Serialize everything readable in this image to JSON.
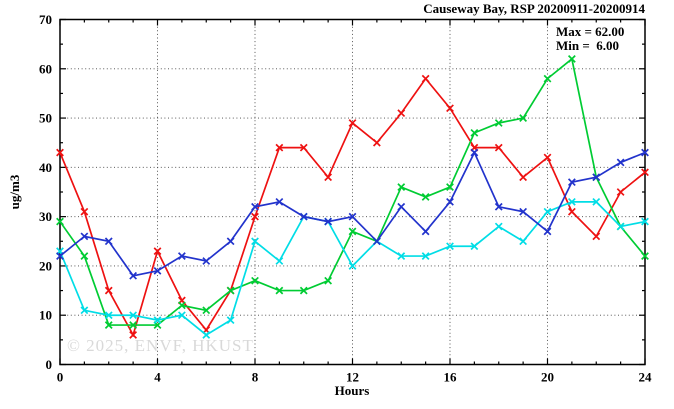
{
  "chart_data": {
    "type": "line",
    "title": "Causeway Bay, RSP 20200911-20200914",
    "xlabel": "Hours",
    "ylabel": "ug/m3",
    "xlim": [
      0,
      24
    ],
    "ylim": [
      0,
      70
    ],
    "x_major_ticks": [
      0,
      4,
      8,
      12,
      16,
      20,
      24
    ],
    "y_major_ticks": [
      0,
      10,
      20,
      30,
      40,
      50,
      60,
      70
    ],
    "x_minor_step": 1,
    "y_minor_step": 5,
    "grid": true,
    "legend": {
      "max": "Max = 62.00",
      "min": "Min =  6.00",
      "position": "top-right-inside"
    },
    "watermark": "© 2025, ENVF, HKUST",
    "x": [
      0,
      1,
      2,
      3,
      4,
      5,
      6,
      7,
      8,
      9,
      10,
      11,
      12,
      13,
      14,
      15,
      16,
      17,
      18,
      19,
      20,
      21,
      22,
      23,
      24
    ],
    "series": [
      {
        "name": "series-red",
        "color": "#ee1111",
        "marker": "x",
        "values": [
          43,
          31,
          15,
          6,
          23,
          13,
          7,
          15,
          30,
          44,
          44,
          38,
          49,
          45,
          51,
          58,
          52,
          44,
          44,
          38,
          42,
          31,
          26,
          35,
          39
        ]
      },
      {
        "name": "series-green",
        "color": "#00cc33",
        "marker": "x",
        "values": [
          29,
          22,
          8,
          8,
          8,
          12,
          11,
          15,
          17,
          15,
          15,
          17,
          27,
          25,
          36,
          34,
          36,
          47,
          49,
          50,
          58,
          62,
          38,
          28,
          22
        ]
      },
      {
        "name": "series-cyan",
        "color": "#00dde6",
        "marker": "x",
        "values": [
          23,
          11,
          10,
          10,
          9,
          10,
          6,
          9,
          25,
          21,
          30,
          29,
          20,
          25,
          22,
          22,
          24,
          24,
          28,
          25,
          31,
          33,
          33,
          28,
          29
        ]
      },
      {
        "name": "series-blue",
        "color": "#2233cc",
        "marker": "x",
        "values": [
          22,
          26,
          25,
          18,
          19,
          22,
          21,
          25,
          32,
          33,
          30,
          29,
          30,
          25,
          32,
          27,
          33,
          43,
          32,
          31,
          27,
          37,
          38,
          41,
          43
        ]
      }
    ]
  }
}
